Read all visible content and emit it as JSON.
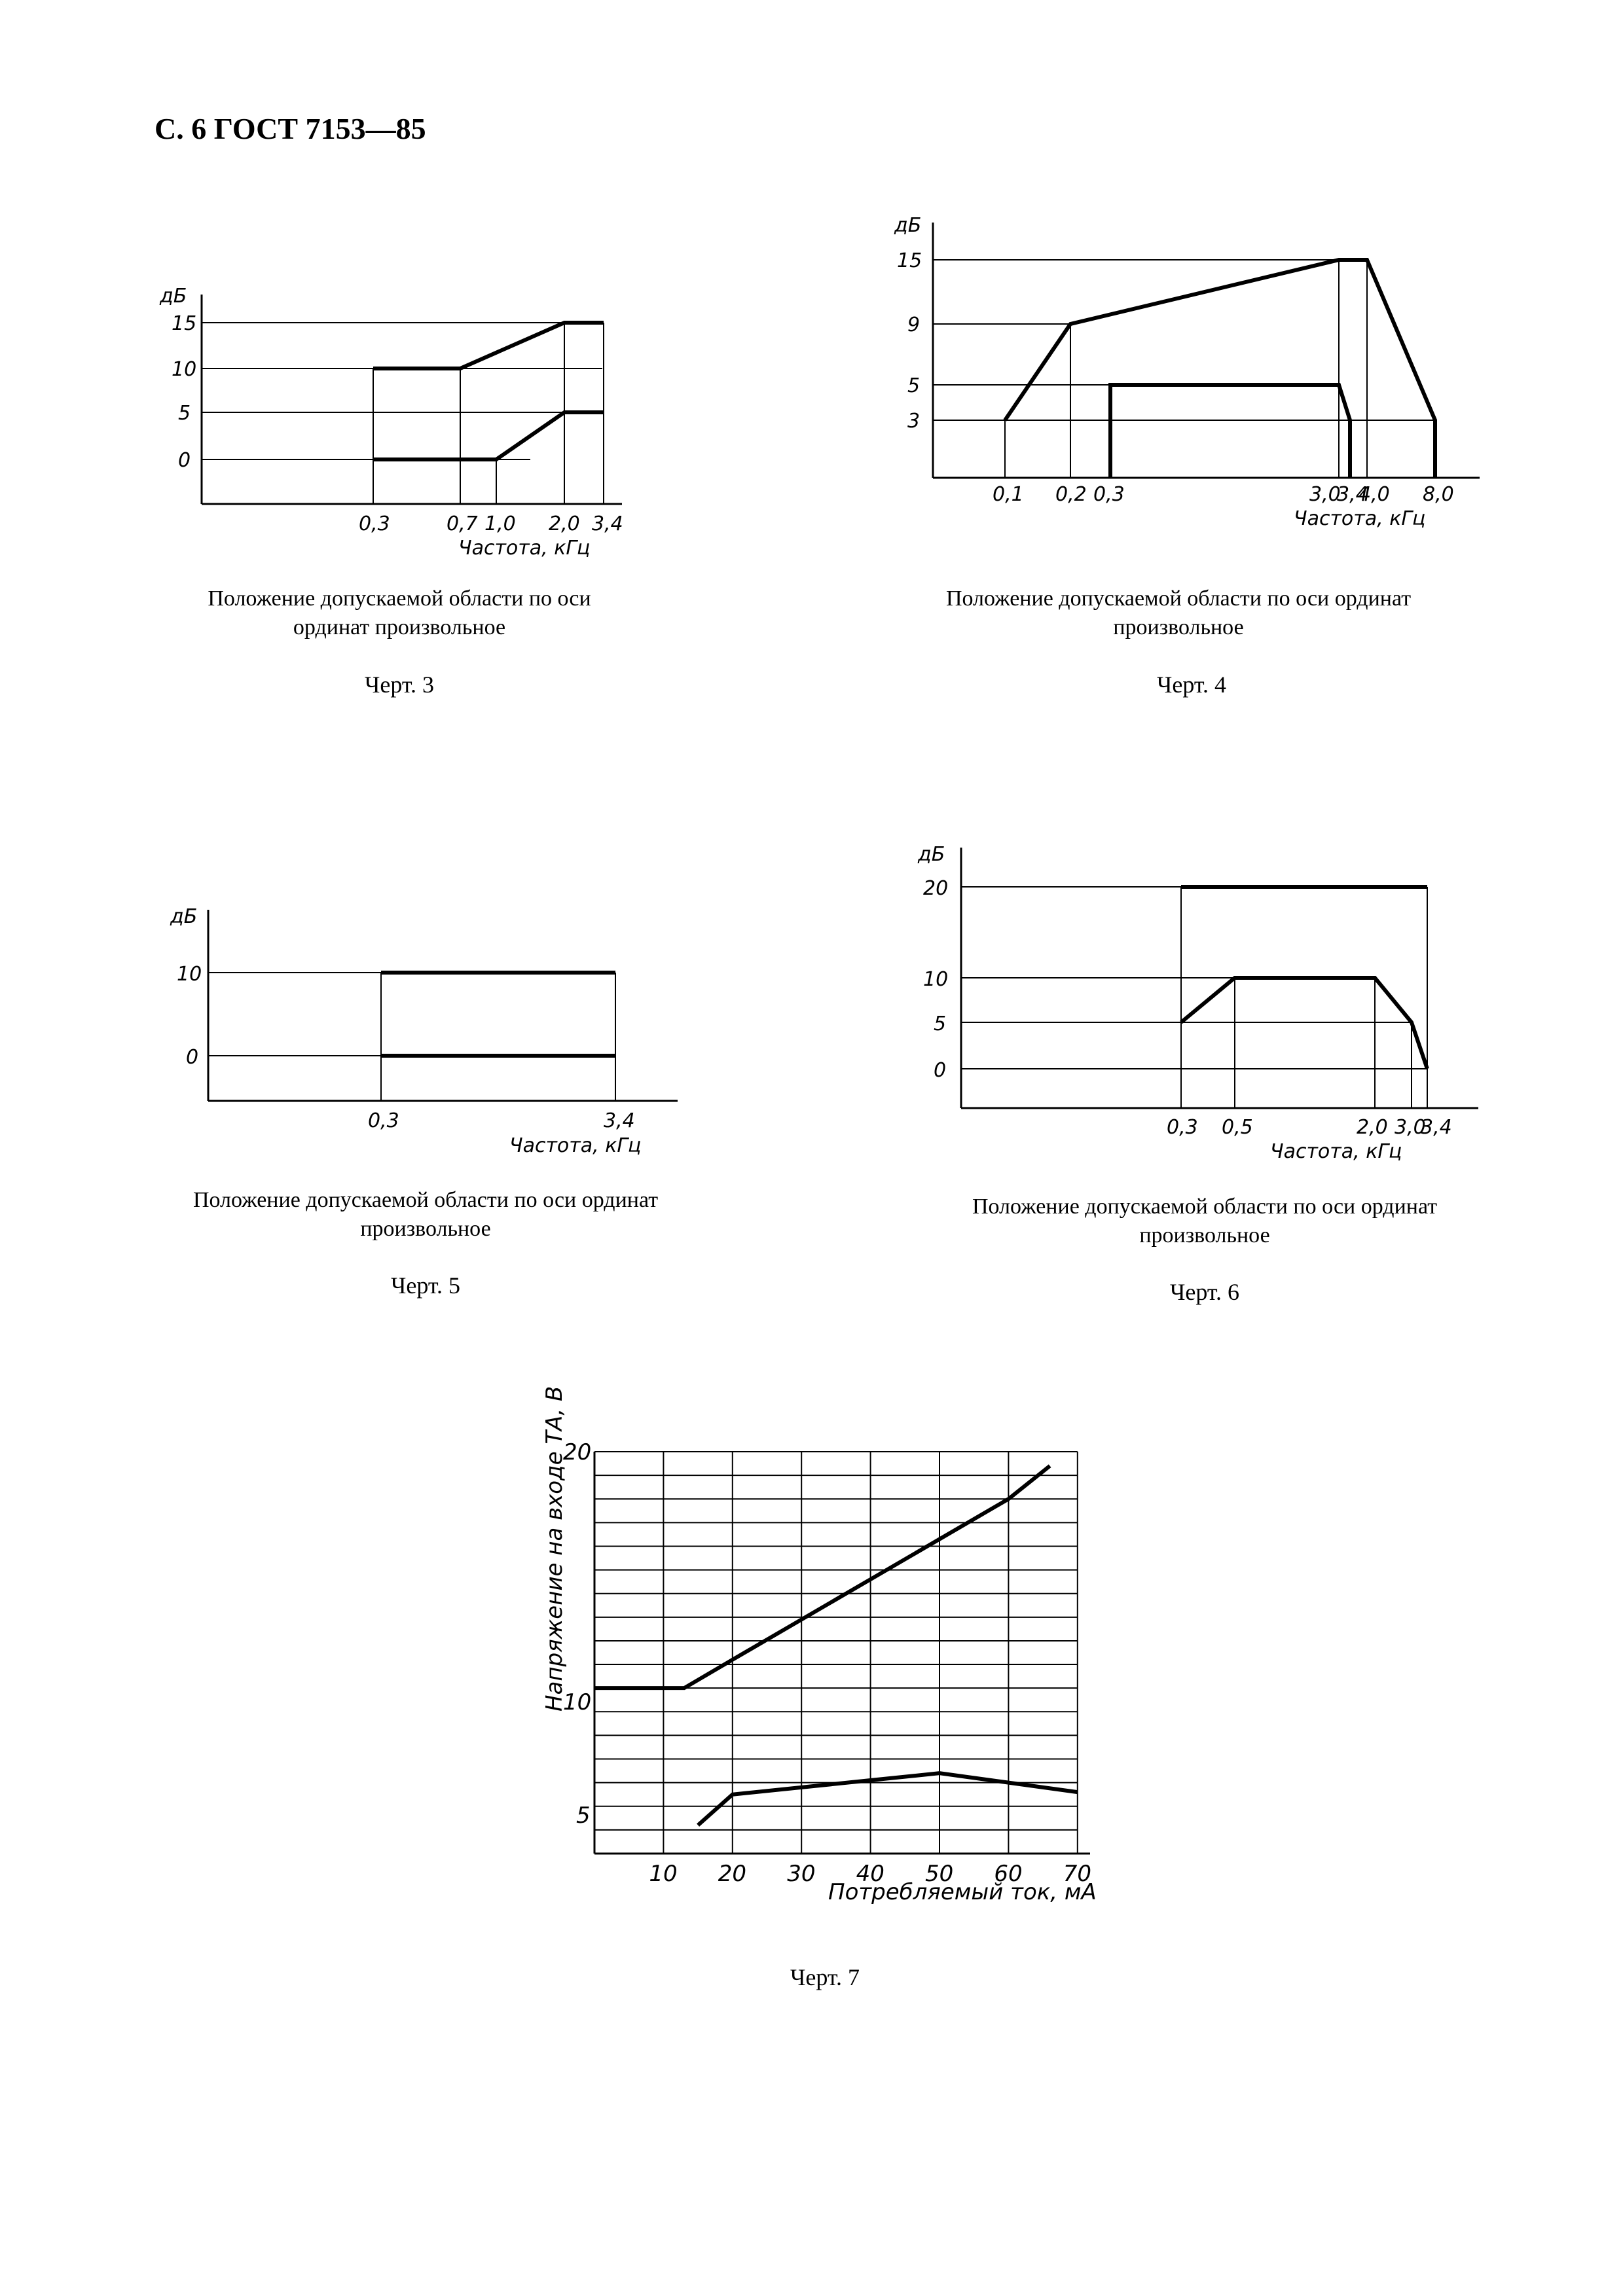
{
  "header": {
    "title": "С. 6 ГОСТ 7153—85"
  },
  "figures": [
    {
      "id": "fig3",
      "caption": "Положение допускаемой области по оси ординат произвольное",
      "chert": "Черт. 3"
    },
    {
      "id": "fig4",
      "caption": "Положение допускаемой области по оси ординат произвольное",
      "chert": "Черт. 4"
    },
    {
      "id": "fig5",
      "caption": "Положение допускаемой области по оси ординат произвольное",
      "chert": "Черт. 5"
    },
    {
      "id": "fig6",
      "caption": "Положение допускаемой области по оси ординат произвольное",
      "chert": "Черт. 6"
    },
    {
      "id": "fig7",
      "caption": "",
      "chert": "Черт. 7"
    }
  ],
  "chart_data": [
    {
      "type": "line",
      "figure": "Черт. 3",
      "ylabel": "дБ",
      "xlabel": "Частота, кГц",
      "y_ticks": [
        "15",
        "10",
        "5",
        "0"
      ],
      "x_ticks": [
        "0,3",
        "0,7",
        "1,0",
        "2,0",
        "3,4"
      ],
      "series": [
        {
          "x": [
            0.3,
            0.7,
            2.0,
            3.4
          ],
          "y": [
            10,
            10,
            15,
            15
          ]
        },
        {
          "x": [
            0.3,
            1.0,
            2.0,
            3.4
          ],
          "y": [
            0,
            0,
            5,
            5
          ]
        }
      ]
    },
    {
      "type": "line",
      "figure": "Черт. 4",
      "ylabel": "дБ",
      "xlabel": "Частота, кГц",
      "y_ticks": [
        "15",
        "9",
        "5",
        "3"
      ],
      "x_ticks": [
        "0,1",
        "0,2",
        "0,3",
        "3,0",
        "3,4",
        "4,0",
        "8,0"
      ],
      "series": [
        {
          "x": [
            0.1,
            0.2,
            3.4,
            4.0,
            8.0,
            8.0
          ],
          "y": [
            3,
            9,
            15,
            15,
            3,
            0
          ]
        },
        {
          "x": [
            0.3,
            0.3,
            3.0,
            3.4,
            3.4
          ],
          "y": [
            0,
            5,
            5,
            3,
            0
          ]
        }
      ]
    },
    {
      "type": "line",
      "figure": "Черт. 5",
      "ylabel": "дБ",
      "xlabel": "Частота, кГц",
      "y_ticks": [
        "10",
        "0"
      ],
      "x_ticks": [
        "0,3",
        "3,4"
      ],
      "series": [
        {
          "x": [
            0.3,
            3.4
          ],
          "y": [
            10,
            10
          ]
        },
        {
          "x": [
            0.3,
            3.4
          ],
          "y": [
            0,
            0
          ]
        }
      ]
    },
    {
      "type": "line",
      "figure": "Черт. 6",
      "ylabel": "дБ",
      "xlabel": "Частота, кГц",
      "y_ticks": [
        "20",
        "10",
        "5",
        "0"
      ],
      "x_ticks": [
        "0,3",
        "0,5",
        "2,0",
        "3,0",
        "3,4"
      ],
      "series": [
        {
          "x": [
            0.3,
            3.4
          ],
          "y": [
            20,
            20
          ]
        },
        {
          "x": [
            0.3,
            0.5,
            2.0,
            3.0,
            3.4
          ],
          "y": [
            5,
            10,
            10,
            5,
            0
          ]
        }
      ]
    },
    {
      "type": "line",
      "figure": "Черт. 7",
      "ylabel": "Напряжение на входе ТА, В",
      "xlabel": "Потребляемый ток, мА",
      "x_ticks": [
        "10",
        "20",
        "30",
        "40",
        "50",
        "60",
        "70"
      ],
      "y_ticks": [
        "20",
        "10",
        "5"
      ],
      "xlim": [
        0,
        70
      ],
      "ylim": [
        3,
        20
      ],
      "grid": true,
      "series": [
        {
          "x": [
            0,
            13,
            20,
            30,
            40,
            50,
            60,
            66
          ],
          "y": [
            10,
            10,
            11.2,
            12.9,
            14.6,
            16.3,
            18.0,
            19.4
          ]
        },
        {
          "x": [
            15,
            20,
            30,
            40,
            50,
            60,
            70
          ],
          "y": [
            4.2,
            5.5,
            5.8,
            6.1,
            6.4,
            6.0,
            5.6
          ]
        }
      ]
    }
  ]
}
